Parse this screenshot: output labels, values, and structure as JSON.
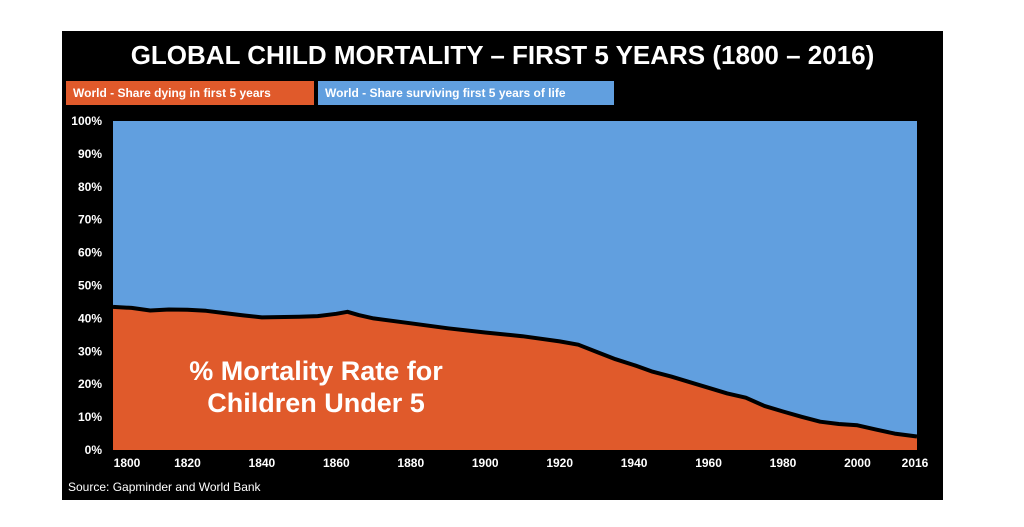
{
  "colors": {
    "background": "#000000",
    "dying": "#e05a2b",
    "surviving": "#619fdf",
    "boundary": "#000000",
    "text": "#ffffff"
  },
  "chart_data": {
    "type": "area",
    "title": "GLOBAL CHILD MORTALITY – FIRST 5 YEARS (1800 – 2016)",
    "xlabel": "",
    "ylabel": "",
    "xlim": [
      1800,
      2016
    ],
    "ylim": [
      0,
      100
    ],
    "grid": false,
    "stacked": true,
    "legend_placement": "top-left",
    "x_ticks": [
      "1800",
      "1820",
      "1840",
      "1860",
      "1880",
      "1900",
      "1920",
      "1940",
      "1960",
      "1980",
      "2000",
      "2016"
    ],
    "y_ticks": [
      "0%",
      "10%",
      "20%",
      "30%",
      "40%",
      "50%",
      "60%",
      "70%",
      "80%",
      "90%",
      "100%"
    ],
    "x": [
      1800,
      1805,
      1810,
      1815,
      1820,
      1825,
      1830,
      1835,
      1840,
      1850,
      1855,
      1860,
      1863,
      1866,
      1870,
      1880,
      1890,
      1900,
      1910,
      1920,
      1925,
      1930,
      1935,
      1940,
      1945,
      1950,
      1955,
      1960,
      1965,
      1970,
      1975,
      1980,
      1985,
      1990,
      1995,
      2000,
      2005,
      2010,
      2016
    ],
    "series": [
      {
        "name": "World - Share dying in first 5 years",
        "values": [
          43.5,
          43.2,
          42.4,
          42.7,
          42.6,
          42.3,
          41.6,
          40.9,
          40.3,
          40.5,
          40.7,
          41.4,
          42.0,
          41.0,
          40.0,
          38.5,
          37.0,
          35.7,
          34.6,
          33.0,
          32.0,
          29.8,
          27.6,
          25.8,
          23.8,
          22.3,
          20.6,
          18.9,
          17.2,
          15.9,
          13.4,
          11.7,
          10.1,
          8.6,
          7.9,
          7.5,
          6.2,
          5.0,
          4.1
        ]
      },
      {
        "name": "World - Share surviving first 5 years of life",
        "values": [
          56.5,
          56.8,
          57.6,
          57.3,
          57.4,
          57.7,
          58.4,
          59.1,
          59.7,
          59.5,
          59.3,
          58.6,
          58.0,
          59.0,
          60.0,
          61.5,
          63.0,
          64.3,
          65.4,
          67.0,
          68.0,
          70.2,
          72.4,
          74.2,
          76.2,
          77.7,
          79.4,
          81.1,
          82.8,
          84.1,
          86.6,
          88.3,
          89.9,
          91.4,
          92.1,
          92.5,
          93.8,
          95.0,
          95.9
        ]
      }
    ],
    "annotation": [
      "% Mortality Rate for",
      "Children Under 5"
    ],
    "source": "Source: Gapminder and World Bank"
  }
}
